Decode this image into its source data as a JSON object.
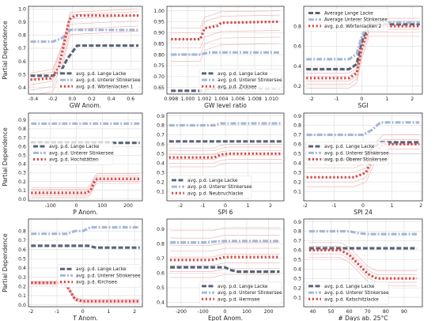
{
  "figure": {
    "ylabel": "Partial Dependence"
  },
  "colors": {
    "dark": "#5a6478",
    "light": "#a7b8d6",
    "red": "#d14a4a",
    "ice": "#e9a7a7",
    "grid": "#dddddd",
    "frame": "#333333"
  },
  "chart_data": [
    {
      "type": "line",
      "xlabel": "GW Anom.",
      "ylabel": "Partial Dependence",
      "xlim": [
        -0.45,
        0.72
      ],
      "ylim": [
        0.35,
        1.02
      ],
      "xticks": [
        -0.4,
        -0.2,
        0.0,
        0.2,
        0.4,
        0.6
      ],
      "xtick_labels": [
        "-0.4",
        "-0.2",
        "0.0",
        "0.2",
        "0.4",
        "0.6"
      ],
      "yticks": [
        0.4,
        0.5,
        0.6,
        0.7,
        0.8,
        0.9,
        1.0
      ],
      "ytick_labels": [
        "0.4",
        "0.5",
        "0.6",
        "0.7",
        "0.8",
        "0.9",
        "1.0"
      ],
      "grid": true,
      "legend_loc": "lower-right",
      "series": [
        {
          "name": "avg. p.d. Lange Lacke",
          "style": "dash",
          "color": "dark",
          "x": [
            -0.43,
            -0.2,
            -0.12,
            -0.05,
            0.05,
            0.68
          ],
          "y": [
            0.49,
            0.49,
            0.52,
            0.62,
            0.72,
            0.72
          ]
        },
        {
          "name": "avg. p.d. Unterer Stinkersee",
          "style": "dashdot",
          "color": "light",
          "x": [
            -0.43,
            -0.2,
            -0.1,
            -0.02,
            0.68
          ],
          "y": [
            0.75,
            0.75,
            0.78,
            0.84,
            0.84
          ]
        },
        {
          "name": "avg. p.d. Wörtenlacken 1",
          "style": "dot",
          "color": "red",
          "x": [
            -0.43,
            -0.22,
            -0.14,
            -0.08,
            -0.03,
            0.03,
            0.68
          ],
          "y": [
            0.46,
            0.47,
            0.55,
            0.75,
            0.92,
            0.95,
            0.95
          ]
        }
      ],
      "ice": {
        "x": [
          -0.43,
          -0.2,
          -0.1,
          -0.02,
          0.68
        ],
        "offsets": [
          -0.12,
          -0.08,
          -0.04,
          0.0,
          0.03,
          0.05
        ],
        "base_series": 2
      }
    },
    {
      "type": "line",
      "xlabel": "GW level ratio",
      "ylabel": "",
      "xlim": [
        0.9975,
        1.0115
      ],
      "ylim": [
        0.62,
        1.02
      ],
      "xticks": [
        0.998,
        1.0,
        1.002,
        1.004,
        1.006,
        1.008,
        1.01
      ],
      "xtick_labels": [
        "0.998",
        "1.000",
        "1.002",
        "1.004",
        "1.006",
        "1.008",
        "1.010"
      ],
      "yticks": [
        0.65,
        0.7,
        0.75,
        0.8,
        0.85,
        0.9,
        0.95,
        1.0
      ],
      "ytick_labels": [
        "0.65",
        "0.70",
        "0.75",
        "0.80",
        "0.85",
        "0.90",
        "0.95",
        "1.00"
      ],
      "grid": true,
      "legend_loc": "lower-right",
      "series": [
        {
          "name": "avg. p.d. Lange Lacke",
          "style": "dash",
          "color": "dark",
          "x": [
            0.998,
            1.0015,
            1.0025,
            1.011
          ],
          "y": [
            0.635,
            0.635,
            0.645,
            0.645
          ]
        },
        {
          "name": "avg. p.d. Unterer Stinkersee",
          "style": "dashdot",
          "color": "light",
          "x": [
            0.998,
            1.0015,
            1.0025,
            1.011
          ],
          "y": [
            0.8,
            0.8,
            0.81,
            0.81
          ]
        },
        {
          "name": "avg. p.d. Zicksee",
          "style": "dot",
          "color": "red",
          "x": [
            0.998,
            1.001,
            1.0015,
            1.002,
            1.0035,
            1.004,
            1.011
          ],
          "y": [
            0.87,
            0.87,
            0.87,
            0.92,
            0.93,
            0.945,
            0.95
          ]
        }
      ],
      "ice": {
        "x": [
          0.998,
          1.0015,
          1.002,
          1.004,
          1.011
        ],
        "offsets": [
          -0.1,
          -0.07,
          -0.04,
          0.0,
          0.03,
          0.05
        ],
        "base_series": 2
      }
    },
    {
      "type": "line",
      "xlabel": "SGI",
      "ylabel": "",
      "xlim": [
        -2.3,
        2.4
      ],
      "ylim": [
        0.12,
        1.0
      ],
      "xticks": [
        -2,
        -1,
        0,
        1,
        2
      ],
      "xtick_labels": [
        "-2",
        "-1",
        "0",
        "1",
        "2"
      ],
      "yticks": [
        0.2,
        0.4,
        0.6,
        0.8
      ],
      "ytick_labels": [
        "0.2",
        "0.4",
        "0.6",
        "0.8"
      ],
      "grid": true,
      "legend_loc": "upper-left",
      "series": [
        {
          "name": "Average Lange Lacke",
          "style": "dash",
          "color": "dark",
          "x": [
            -2.2,
            -0.5,
            -0.2,
            0.0,
            0.3,
            2.3
          ],
          "y": [
            0.37,
            0.37,
            0.42,
            0.65,
            0.82,
            0.82
          ]
        },
        {
          "name": "Average Unterer Stinkersee",
          "style": "dashdot",
          "color": "light",
          "x": [
            -2.2,
            -0.5,
            -0.2,
            0.0,
            0.3,
            2.3
          ],
          "y": [
            0.47,
            0.47,
            0.52,
            0.7,
            0.84,
            0.84
          ]
        },
        {
          "name": "avg. p.d. Wörtenlacken 2",
          "style": "dot",
          "color": "red",
          "x": [
            -2.2,
            -0.5,
            -0.2,
            0.0,
            0.3,
            2.3
          ],
          "y": [
            0.28,
            0.28,
            0.33,
            0.58,
            0.8,
            0.8
          ]
        }
      ],
      "ice": {
        "x": [
          -2.2,
          -0.5,
          -0.2,
          0.0,
          0.3,
          2.3
        ],
        "offsets": [
          -0.1,
          -0.06,
          -0.03,
          0.02,
          0.05,
          0.08
        ],
        "base_series": 2
      }
    },
    {
      "type": "line",
      "xlabel": "P Anom.",
      "ylabel": "Partial Dependence",
      "xlim": [
        -185,
        255
      ],
      "ylim": [
        -0.02,
        0.98
      ],
      "xticks": [
        -100,
        0,
        100,
        200
      ],
      "xtick_labels": [
        "-100",
        "0",
        "100",
        "200"
      ],
      "yticks": [
        0.0,
        0.1,
        0.2,
        0.3,
        0.4,
        0.5,
        0.6,
        0.7,
        0.8,
        0.9
      ],
      "ytick_labels": [
        "0.0",
        "0.1",
        "0.2",
        "0.3",
        "0.4",
        "0.5",
        "0.6",
        "0.7",
        "0.8",
        "0.9"
      ],
      "grid": true,
      "legend_loc": "middle-left",
      "series": [
        {
          "name": "avg. p.d. Lange Lacke",
          "style": "dash",
          "color": "dark",
          "x": [
            -175,
            245
          ],
          "y": [
            0.64,
            0.64
          ]
        },
        {
          "name": "avg. p.d. Unterer Stinkersee",
          "style": "dashdot",
          "color": "light",
          "x": [
            -175,
            245
          ],
          "y": [
            0.86,
            0.86
          ]
        },
        {
          "name": "avg. p.d. Hochstätten",
          "style": "dot",
          "color": "red",
          "x": [
            -175,
            40,
            55,
            70,
            80,
            245
          ],
          "y": [
            0.07,
            0.07,
            0.1,
            0.2,
            0.23,
            0.23
          ]
        }
      ],
      "ice": {
        "x": [
          -175,
          40,
          55,
          70,
          80,
          245
        ],
        "offsets": [
          -0.05,
          -0.03,
          -0.01,
          0.02,
          0.04,
          0.06
        ],
        "base_series": 2
      }
    },
    {
      "type": "line",
      "xlabel": "SPI 6",
      "ylabel": "",
      "xlim": [
        -2.6,
        2.6
      ],
      "ylim": [
        0.0,
        0.93
      ],
      "xticks": [
        -2,
        -1,
        0,
        1,
        2
      ],
      "xtick_labels": [
        "-2",
        "-1",
        "0",
        "1",
        "2"
      ],
      "yticks": [
        0.1,
        0.2,
        0.3,
        0.4,
        0.5,
        0.6,
        0.7,
        0.8,
        0.9
      ],
      "ytick_labels": [
        "0.1",
        "0.2",
        "0.3",
        "0.4",
        "0.5",
        "0.6",
        "0.7",
        "0.8",
        "0.9"
      ],
      "grid": true,
      "legend_loc": "lower-left",
      "series": [
        {
          "name": "avg. p.d. Lange Lacke",
          "style": "dash",
          "color": "dark",
          "x": [
            -2.5,
            2.5
          ],
          "y": [
            0.63,
            0.63
          ]
        },
        {
          "name": "avg. p.d. Unterer Stinkersee",
          "style": "dashdot",
          "color": "light",
          "x": [
            -2.5,
            -0.5,
            -0.2,
            2.5
          ],
          "y": [
            0.8,
            0.8,
            0.82,
            0.82
          ]
        },
        {
          "name": "avg. p.d. Neubruchlacke",
          "style": "dot",
          "color": "red",
          "x": [
            -2.5,
            -0.5,
            -0.2,
            0.2,
            2.5
          ],
          "y": [
            0.46,
            0.46,
            0.49,
            0.5,
            0.5
          ]
        }
      ],
      "ice": {
        "x": [
          -2.5,
          -0.5,
          -0.2,
          0.2,
          2.5
        ],
        "offsets": [
          -0.1,
          -0.06,
          -0.02,
          0.03,
          0.07,
          0.1
        ],
        "base_series": 2
      }
    },
    {
      "type": "line",
      "xlabel": "SPI 24",
      "ylabel": "",
      "xlim": [
        -2.05,
        2.05
      ],
      "ylim": [
        0.0,
        0.93
      ],
      "xticks": [
        -2,
        -1,
        0,
        1,
        2
      ],
      "xtick_labels": [
        "-2",
        "-1",
        "0",
        "1",
        "2"
      ],
      "yticks": [
        0.1,
        0.2,
        0.3,
        0.4,
        0.5,
        0.6,
        0.7,
        0.8,
        0.9
      ],
      "ytick_labels": [
        "0.1",
        "0.2",
        "0.3",
        "0.4",
        "0.5",
        "0.6",
        "0.7",
        "0.8",
        "0.9"
      ],
      "grid": true,
      "legend_loc": "middle-left",
      "series": [
        {
          "name": "avg. p.d. Lange Lacke",
          "style": "dash",
          "color": "dark",
          "x": [
            -1.95,
            0.0,
            0.3,
            0.6,
            1.95
          ],
          "y": [
            0.44,
            0.44,
            0.55,
            0.62,
            0.62
          ]
        },
        {
          "name": "avg. p.d. Unterer Stinkersee",
          "style": "dashdot",
          "color": "light",
          "x": [
            -1.95,
            0.0,
            0.3,
            0.6,
            1.95
          ],
          "y": [
            0.7,
            0.7,
            0.75,
            0.83,
            0.83
          ]
        },
        {
          "name": "avg. p.d. Oberer Stinkersee",
          "style": "dot",
          "color": "red",
          "x": [
            -1.95,
            -0.3,
            0.1,
            0.4,
            0.7,
            1.95
          ],
          "y": [
            0.25,
            0.25,
            0.3,
            0.5,
            0.6,
            0.6
          ]
        }
      ],
      "ice": {
        "x": [
          -1.95,
          -0.3,
          0.1,
          0.4,
          0.7,
          1.95
        ],
        "offsets": [
          -0.1,
          -0.05,
          0.0,
          0.05,
          0.1
        ],
        "base_series": 2
      }
    },
    {
      "type": "line",
      "xlabel": "T Anom.",
      "ylabel": "Partial Dependence",
      "xlim": [
        -2.1,
        2.3
      ],
      "ylim": [
        -0.02,
        0.93
      ],
      "xticks": [
        -2,
        -1,
        0,
        1,
        2
      ],
      "xtick_labels": [
        "-2",
        "-1",
        "0",
        "1",
        "2"
      ],
      "yticks": [
        0.0,
        0.1,
        0.2,
        0.3,
        0.4,
        0.5,
        0.6,
        0.7,
        0.8
      ],
      "ytick_labels": [
        "0.0",
        "0.1",
        "0.2",
        "0.3",
        "0.4",
        "0.5",
        "0.6",
        "0.7",
        "0.8"
      ],
      "grid": true,
      "legend_loc": "middle-right",
      "series": [
        {
          "name": "avg. p.d. Lange Lacke",
          "style": "dash",
          "color": "dark",
          "x": [
            -2.0,
            0.2,
            0.5,
            2.2
          ],
          "y": [
            0.64,
            0.64,
            0.62,
            0.62
          ]
        },
        {
          "name": "avg. p.d. Unterer Stinkersee",
          "style": "dashdot",
          "color": "light",
          "x": [
            -2.0,
            -0.6,
            -0.3,
            0.0,
            0.3,
            2.2
          ],
          "y": [
            0.77,
            0.77,
            0.8,
            0.8,
            0.84,
            0.84
          ]
        },
        {
          "name": "avg. p.d. Kirchsee",
          "style": "dot",
          "color": "red",
          "x": [
            -2.0,
            -0.9,
            -0.6,
            -0.3,
            0.0,
            2.2
          ],
          "y": [
            0.24,
            0.24,
            0.2,
            0.06,
            0.04,
            0.04
          ]
        }
      ],
      "ice": {
        "x": [
          -2.0,
          -0.9,
          -0.6,
          -0.3,
          0.0,
          2.2
        ],
        "offsets": [
          -0.02,
          -0.01,
          0.0,
          0.01,
          0.02
        ],
        "base_series": 2
      }
    },
    {
      "type": "line",
      "xlabel": "Epot Anom.",
      "ylabel": "",
      "xlim": [
        -265,
        270
      ],
      "ylim": [
        0.37,
        0.97
      ],
      "xticks": [
        -200,
        -100,
        0,
        100,
        200
      ],
      "xtick_labels": [
        "-200",
        "-100",
        "0",
        "100",
        "200"
      ],
      "yticks": [
        0.4,
        0.5,
        0.6,
        0.7,
        0.8,
        0.9
      ],
      "ytick_labels": [
        "0.4",
        "0.5",
        "0.6",
        "0.7",
        "0.8",
        "0.9"
      ],
      "grid": true,
      "legend_loc": "lower-right",
      "series": [
        {
          "name": "avg. p.d. Lange Lacke",
          "style": "dash",
          "color": "dark",
          "x": [
            -250,
            0,
            30,
            60,
            250
          ],
          "y": [
            0.64,
            0.64,
            0.62,
            0.61,
            0.61
          ]
        },
        {
          "name": "avg. p.d. Unterer Stinkersee",
          "style": "dashdot",
          "color": "light",
          "x": [
            -250,
            -100,
            0,
            100,
            250
          ],
          "y": [
            0.81,
            0.81,
            0.82,
            0.82,
            0.82
          ]
        },
        {
          "name": "avg. p.d. Herrnsee",
          "style": "dot",
          "color": "red",
          "x": [
            -250,
            -60,
            0,
            60,
            250
          ],
          "y": [
            0.69,
            0.69,
            0.71,
            0.71,
            0.71
          ]
        }
      ],
      "ice": {
        "x": [
          -250,
          -60,
          0,
          60,
          250
        ],
        "offsets": [
          -0.12,
          -0.08,
          -0.04,
          0.02,
          0.06,
          0.1,
          0.15,
          0.2
        ],
        "base_series": 2
      }
    },
    {
      "type": "line",
      "xlabel": "# Days ab. 25°C",
      "ylabel": "",
      "xlim": [
        35,
        100
      ],
      "ylim": [
        0.0,
        0.93
      ],
      "xticks": [
        40,
        50,
        60,
        70,
        80,
        90
      ],
      "xtick_labels": [
        "40",
        "50",
        "60",
        "70",
        "80",
        "90"
      ],
      "yticks": [
        0.1,
        0.2,
        0.3,
        0.4,
        0.5,
        0.6,
        0.7,
        0.8,
        0.9
      ],
      "ytick_labels": [
        "0.1",
        "0.2",
        "0.3",
        "0.4",
        "0.5",
        "0.6",
        "0.7",
        "0.8",
        "0.9"
      ],
      "grid": true,
      "legend_loc": "lower-left",
      "series": [
        {
          "name": "avg. p.d. Lange Lacke",
          "style": "dash",
          "color": "dark",
          "x": [
            38,
            97
          ],
          "y": [
            0.62,
            0.62
          ]
        },
        {
          "name": "avg. p.d. Unterer Stinkersee",
          "style": "dashdot",
          "color": "light",
          "x": [
            38,
            60,
            65,
            70,
            97
          ],
          "y": [
            0.8,
            0.8,
            0.78,
            0.77,
            0.77
          ]
        },
        {
          "name": "avg. p.d. Katschitzlacke",
          "style": "dot",
          "color": "red",
          "x": [
            38,
            55,
            60,
            65,
            70,
            75,
            97
          ],
          "y": [
            0.6,
            0.6,
            0.55,
            0.45,
            0.35,
            0.3,
            0.3
          ]
        }
      ],
      "ice": {
        "x": [
          38,
          55,
          60,
          65,
          70,
          75,
          97
        ],
        "offsets": [
          -0.08,
          -0.04,
          0.0,
          0.04,
          0.08
        ],
        "base_series": 2
      }
    }
  ]
}
